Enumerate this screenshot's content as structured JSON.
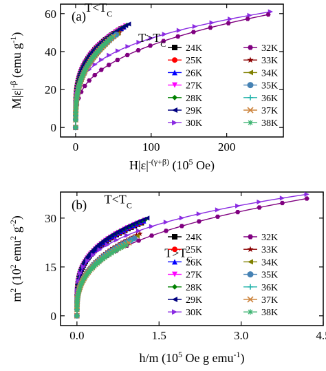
{
  "chart_data": [
    {
      "panel_label": "(a)",
      "type": "line",
      "xlabel_parts": [
        "H|ε|",
        "-(γ+β)",
        " (10",
        "5",
        " Oe)"
      ],
      "ylabel_parts": [
        "M|ε|",
        "-β",
        " (emu g",
        "-1",
        ")"
      ],
      "xlim": [
        -20,
        275
      ],
      "ylim": [
        -5,
        65
      ],
      "xticks": [
        0,
        100,
        200
      ],
      "yticks": [
        0,
        20,
        40,
        60
      ],
      "xtick_labels": [
        "0",
        "100",
        "200"
      ],
      "ytick_labels": [
        "0",
        "20",
        "40",
        "60"
      ],
      "annotations": [
        {
          "id": "t-below",
          "text": "T<T",
          "sub": "C",
          "x": 12,
          "y": 61
        },
        {
          "id": "t-above",
          "text": "T>T",
          "sub": "C",
          "x": 83,
          "y": 45
        }
      ],
      "legend_position": "lower-right",
      "series": [
        {
          "name": "24K",
          "color": "#000000",
          "marker": "square",
          "branch": "low",
          "x_end": 60,
          "y_end": 52
        },
        {
          "name": "25K",
          "color": "#ff0000",
          "marker": "circle",
          "branch": "low",
          "x_end": 62,
          "y_end": 52.5
        },
        {
          "name": "26K",
          "color": "#0000ff",
          "marker": "triangle-up",
          "branch": "low",
          "x_end": 64,
          "y_end": 53
        },
        {
          "name": "27K",
          "color": "#ff00ff",
          "marker": "triangle-down",
          "branch": "low",
          "x_end": 66,
          "y_end": 53.5
        },
        {
          "name": "28K",
          "color": "#008000",
          "marker": "diamond",
          "branch": "low",
          "x_end": 68,
          "y_end": 54
        },
        {
          "name": "29K",
          "color": "#000080",
          "marker": "triangle-left",
          "branch": "low",
          "x_end": 70,
          "y_end": 54.5
        },
        {
          "name": "30K",
          "color": "#8a2be2",
          "marker": "triangle-right",
          "branch": "low",
          "x_end": 258,
          "y_end": 61
        },
        {
          "name": "32K",
          "color": "#800080",
          "marker": "hexagon",
          "branch": "high",
          "x_end": 255,
          "y_end": 59.5
        },
        {
          "name": "33K",
          "color": "#8b0000",
          "marker": "star",
          "branch": "high",
          "x_end": 58,
          "y_end": 50
        },
        {
          "name": "34K",
          "color": "#808000",
          "marker": "triangle-left",
          "branch": "high",
          "x_end": 56,
          "y_end": 49.5
        },
        {
          "name": "35K",
          "color": "#4682b4",
          "marker": "circle-half",
          "branch": "high",
          "x_end": 54,
          "y_end": 49
        },
        {
          "name": "36K",
          "color": "#20b2aa",
          "marker": "plus",
          "branch": "high",
          "x_end": 52,
          "y_end": 48.5
        },
        {
          "name": "37K",
          "color": "#cd853f",
          "marker": "cross",
          "branch": "high",
          "x_end": 50,
          "y_end": 48
        },
        {
          "name": "38K",
          "color": "#3cb371",
          "marker": "asterisk",
          "branch": "high",
          "x_end": 48,
          "y_end": 47.5
        }
      ]
    },
    {
      "panel_label": "(b)",
      "type": "line",
      "xlabel_parts": [
        "h/m (10",
        "5",
        " Oe g emu",
        "-1",
        ")"
      ],
      "ylabel_parts": [
        "m",
        "2",
        " (10",
        "2",
        " emu",
        "2",
        " g",
        "-2",
        ")"
      ],
      "xlim": [
        -0.3,
        4.5
      ],
      "ylim": [
        -3,
        38
      ],
      "xticks": [
        0.0,
        1.5,
        3.0,
        4.5
      ],
      "yticks": [
        0,
        15,
        30
      ],
      "xtick_labels": [
        "0.0",
        "1.5",
        "3.0",
        "4.5"
      ],
      "ytick_labels": [
        "0",
        "15",
        "30"
      ],
      "annotations": [
        {
          "id": "t-below",
          "text": "T<T",
          "sub": "C",
          "x": 0.5,
          "y": 34.5
        },
        {
          "id": "t-above",
          "text": "T>T",
          "sub": "C",
          "x": 1.6,
          "y": 18
        }
      ],
      "legend_position": "lower-right",
      "series": [
        {
          "name": "24K",
          "color": "#000000",
          "marker": "square",
          "branch": "low",
          "x_end": 1.18,
          "y_end": 28.5
        },
        {
          "name": "25K",
          "color": "#ff0000",
          "marker": "circle",
          "branch": "low",
          "x_end": 1.2,
          "y_end": 28.8
        },
        {
          "name": "26K",
          "color": "#0000ff",
          "marker": "triangle-up",
          "branch": "low",
          "x_end": 1.22,
          "y_end": 29.1
        },
        {
          "name": "27K",
          "color": "#ff00ff",
          "marker": "triangle-down",
          "branch": "low",
          "x_end": 1.24,
          "y_end": 29.4
        },
        {
          "name": "28K",
          "color": "#008000",
          "marker": "diamond",
          "branch": "low",
          "x_end": 1.26,
          "y_end": 29.7
        },
        {
          "name": "29K",
          "color": "#000080",
          "marker": "triangle-left",
          "branch": "low",
          "x_end": 1.28,
          "y_end": 30
        },
        {
          "name": "30K",
          "color": "#8a2be2",
          "marker": "triangle-right",
          "branch": "low",
          "x_end": 4.2,
          "y_end": 37.3
        },
        {
          "name": "32K",
          "color": "#800080",
          "marker": "hexagon",
          "branch": "high",
          "x_end": 4.2,
          "y_end": 36
        },
        {
          "name": "33K",
          "color": "#8b0000",
          "marker": "star",
          "branch": "high",
          "x_end": 1.15,
          "y_end": 25.2
        },
        {
          "name": "34K",
          "color": "#808000",
          "marker": "triangle-left",
          "branch": "high",
          "x_end": 1.1,
          "y_end": 24.5
        },
        {
          "name": "35K",
          "color": "#4682b4",
          "marker": "circle-half",
          "branch": "high",
          "x_end": 1.05,
          "y_end": 23.8
        },
        {
          "name": "36K",
          "color": "#20b2aa",
          "marker": "plus",
          "branch": "high",
          "x_end": 1.0,
          "y_end": 23.1
        },
        {
          "name": "37K",
          "color": "#cd853f",
          "marker": "cross",
          "branch": "high",
          "x_end": 0.95,
          "y_end": 22.4
        },
        {
          "name": "38K",
          "color": "#3cb371",
          "marker": "asterisk",
          "branch": "high",
          "x_end": 0.9,
          "y_end": 21.7
        }
      ]
    }
  ]
}
